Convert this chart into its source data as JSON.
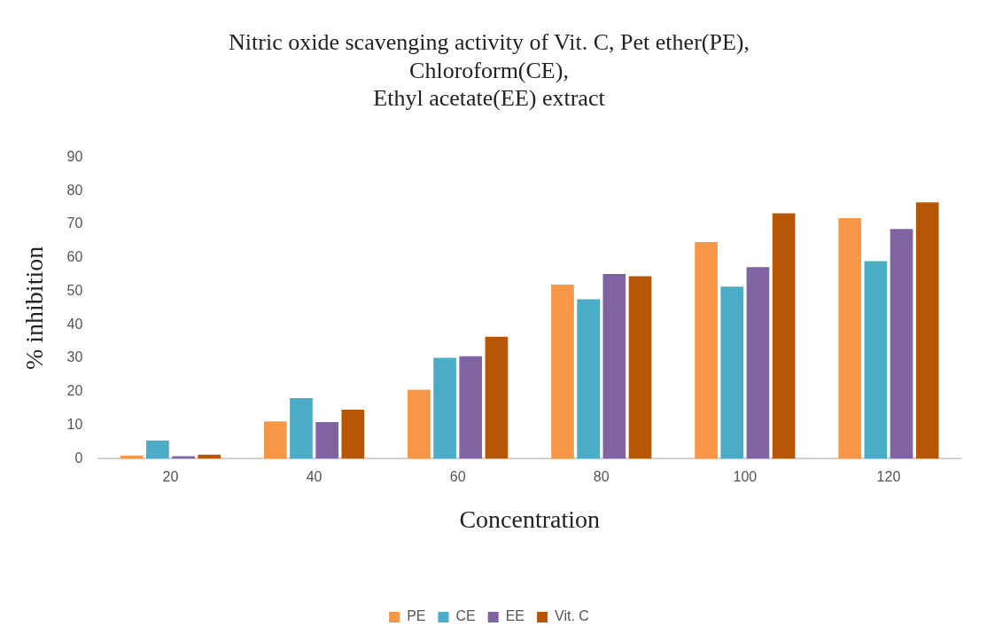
{
  "chart_data": {
    "type": "bar",
    "title": "Nitric oxide scavenging activity of Vit. C, Pet ether(PE), Chloroform(CE), Ethyl acetate(EE) extract",
    "xlabel": "Concentration",
    "ylabel": "% inhibition",
    "categories": [
      "20",
      "40",
      "60",
      "80",
      "100",
      "120"
    ],
    "series": [
      {
        "name": "PE",
        "color": "#f79646",
        "values": [
          0.9,
          11.1,
          20.6,
          52.0,
          64.7,
          71.9
        ]
      },
      {
        "name": "CE",
        "color": "#4bacc6",
        "values": [
          5.4,
          18.1,
          30.1,
          47.6,
          51.4,
          59.0
        ]
      },
      {
        "name": "EE",
        "color": "#8064a2",
        "values": [
          0.7,
          10.9,
          30.6,
          55.2,
          57.2,
          68.6
        ]
      },
      {
        "name": "Vit. C",
        "color": "#b65708",
        "values": [
          1.2,
          14.6,
          36.4,
          54.5,
          73.3,
          76.6
        ]
      }
    ],
    "ylim": [
      0,
      90
    ],
    "yticks": [
      0,
      10,
      20,
      30,
      40,
      50,
      60,
      70,
      80,
      90
    ],
    "grid": false,
    "legend": "bottom"
  }
}
